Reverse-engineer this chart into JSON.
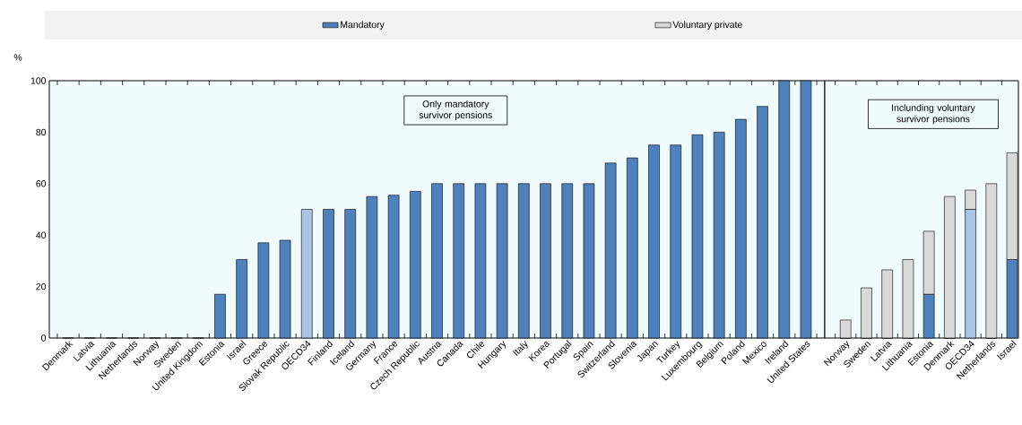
{
  "chart_data": [
    {
      "type": "bar",
      "ylabel": "%",
      "categories": [
        "Denmark",
        "Latvia",
        "Lithuania",
        "Netherlands",
        "Norway",
        "Sweden",
        "United Kingdom",
        "Estonia",
        "Israel",
        "Greece",
        "Slovak Republic",
        "OECD34",
        "Finland",
        "Iceland",
        "Germany",
        "France",
        "Czech Republic",
        "Austria",
        "Canada",
        "Chile",
        "Hungary",
        "Italy",
        "Korea",
        "Portugal",
        "Spain",
        "Switzerland",
        "Slovenia",
        "Japan",
        "Turkey",
        "Luxembourg",
        "Belgium",
        "Poland",
        "Mexico",
        "Ireland",
        "United States"
      ],
      "values": [
        0,
        0,
        0,
        0,
        0,
        0,
        0,
        17,
        30.5,
        37,
        38,
        50,
        50,
        50,
        55,
        55.5,
        57,
        60,
        60,
        60,
        60,
        60,
        60,
        60,
        60,
        68,
        70,
        75,
        75,
        79,
        80,
        85,
        90,
        100,
        100
      ],
      "colors": [
        "#4f81bd",
        "#4f81bd",
        "#4f81bd",
        "#4f81bd",
        "#4f81bd",
        "#4f81bd",
        "#4f81bd",
        "#4f81bd",
        "#4f81bd",
        "#4f81bd",
        "#4f81bd",
        "#a9c4e6",
        "#4f81bd",
        "#4f81bd",
        "#4f81bd",
        "#4f81bd",
        "#4f81bd",
        "#4f81bd",
        "#4f81bd",
        "#4f81bd",
        "#4f81bd",
        "#4f81bd",
        "#4f81bd",
        "#4f81bd",
        "#4f81bd",
        "#4f81bd",
        "#4f81bd",
        "#4f81bd",
        "#4f81bd",
        "#4f81bd",
        "#4f81bd",
        "#4f81bd",
        "#4f81bd",
        "#4f81bd",
        "#4f81bd"
      ],
      "ylim": [
        0,
        100
      ],
      "yticks": [
        0,
        20,
        40,
        60,
        80,
        100
      ],
      "annotations": [
        "Only mandatory survivor pensions"
      ]
    },
    {
      "type": "bar",
      "stacked": true,
      "legend": "top",
      "tick_labels": "x",
      "categories": [
        "Norway",
        "Sweden",
        "Latvia",
        "Lithuania",
        "Estonia",
        "Denmark",
        "OECD34",
        "Netherlands",
        "Israel"
      ],
      "series": [
        {
          "name": "Mandatory",
          "color": "#4f81bd",
          "colors": [
            "#4f81bd",
            "#4f81bd",
            "#4f81bd",
            "#4f81bd",
            "#4f81bd",
            "#4f81bd",
            "#a9c4e6",
            "#4f81bd",
            "#4f81bd"
          ],
          "values": [
            0,
            0,
            0,
            0,
            17,
            0,
            50,
            0,
            30.5
          ]
        },
        {
          "name": "Voluntary private",
          "color": "#d9d9d9",
          "values": [
            7,
            19.5,
            26.5,
            30.5,
            24.5,
            55,
            7.5,
            60,
            41.5
          ]
        }
      ],
      "ylim": [
        0,
        100
      ],
      "yticks": [
        0,
        20,
        40,
        60,
        80,
        100
      ],
      "annotations": [
        "Inclunding voluntary survivor pensions"
      ]
    }
  ]
}
